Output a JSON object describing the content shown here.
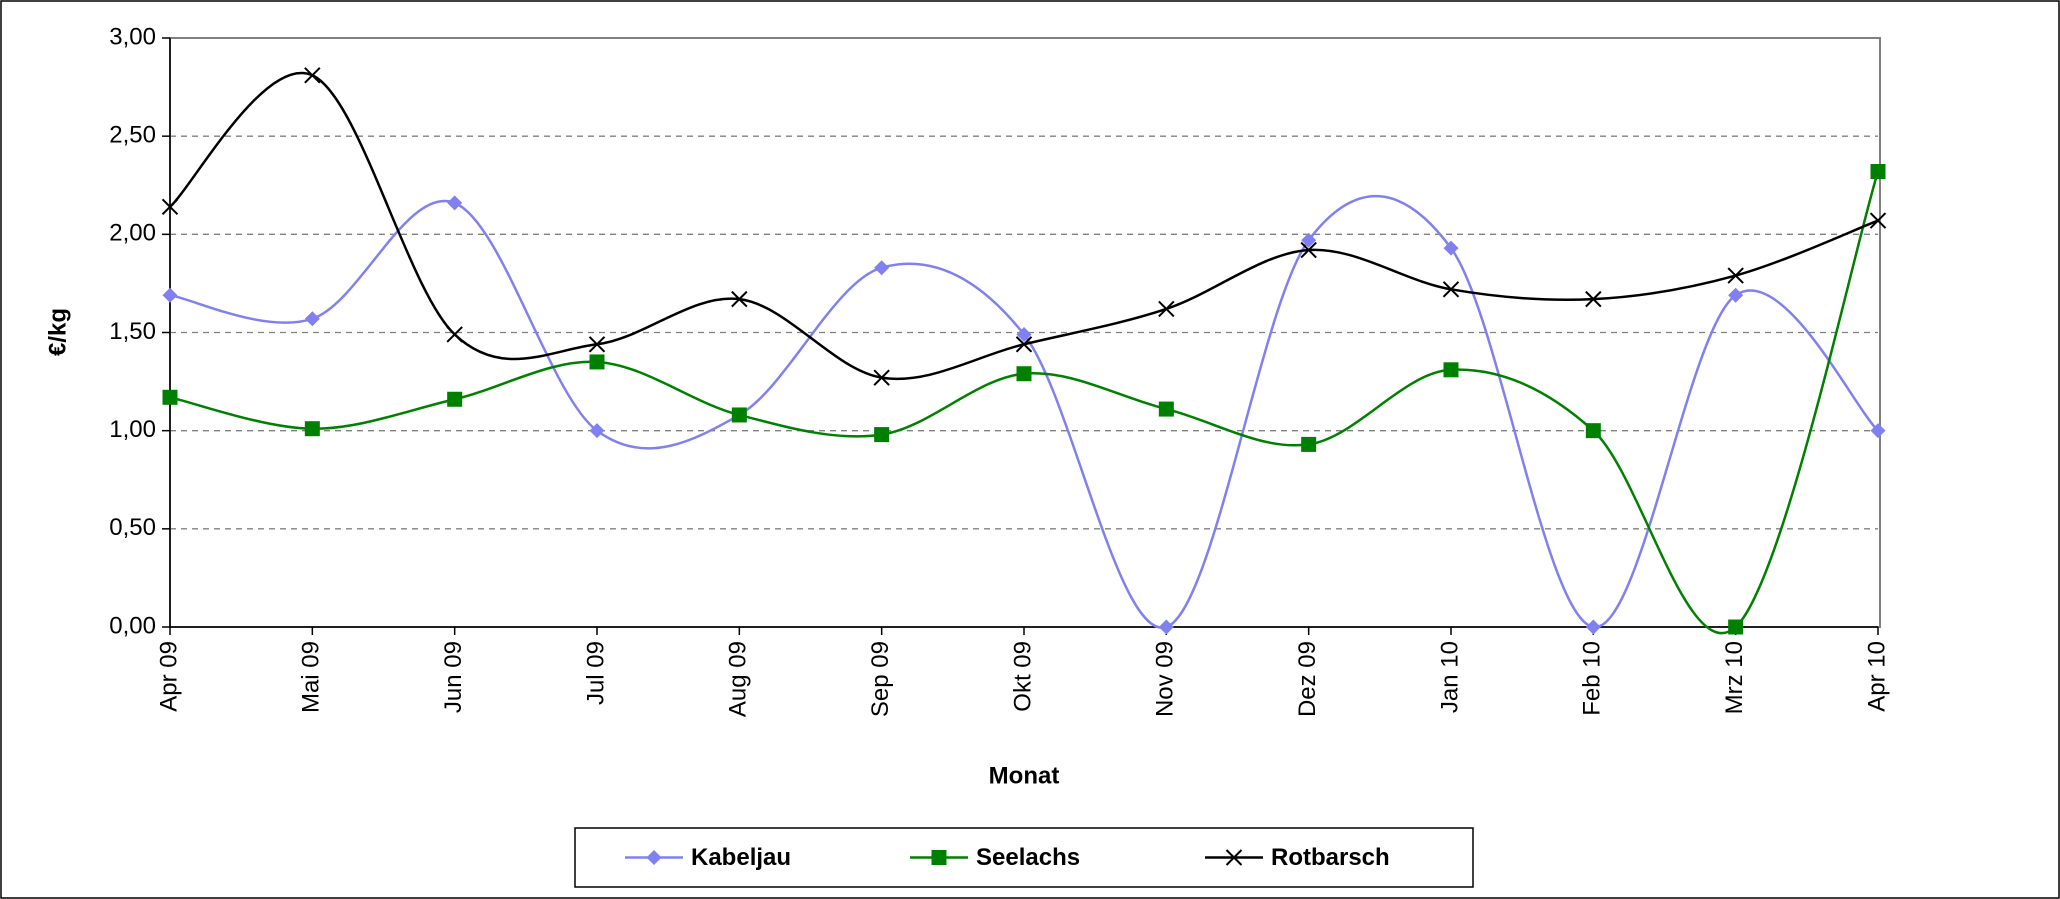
{
  "chart_data": {
    "type": "line",
    "x_label": "Monat",
    "y_label": "€/kg",
    "categories": [
      "Apr 09",
      "Mai 09",
      "Jun 09",
      "Jul 09",
      "Aug 09",
      "Sep 09",
      "Okt 09",
      "Nov 09",
      "Dez 09",
      "Jan 10",
      "Feb 10",
      "Mrz 10",
      "Apr 10"
    ],
    "series": [
      {
        "name": "Kabeljau",
        "color": "#8080f0",
        "marker": "diamond",
        "values": [
          1.69,
          1.57,
          2.16,
          1.0,
          1.08,
          1.83,
          1.49,
          0,
          1.97,
          1.93,
          0,
          1.69,
          1.0
        ]
      },
      {
        "name": "Seelachs",
        "color": "#008000",
        "marker": "square",
        "values": [
          1.17,
          1.01,
          1.16,
          1.35,
          1.08,
          0.98,
          1.29,
          1.11,
          0.93,
          1.31,
          1.0,
          0,
          2.32
        ]
      },
      {
        "name": "Rotbarsch",
        "color": "#000000",
        "marker": "x",
        "values": [
          2.14,
          2.81,
          1.49,
          1.44,
          1.67,
          1.27,
          1.44,
          1.62,
          1.92,
          1.72,
          1.67,
          1.79,
          2.07
        ]
      }
    ],
    "ylim": [
      0,
      3
    ],
    "yticks": [
      {
        "value": 0,
        "label": "0,00"
      },
      {
        "value": 0.5,
        "label": "0,50"
      },
      {
        "value": 1,
        "label": "1,00"
      },
      {
        "value": 1.5,
        "label": "1,50"
      },
      {
        "value": 2,
        "label": "2,00"
      },
      {
        "value": 2.5,
        "label": "2,50"
      },
      {
        "value": 3,
        "label": "3,00"
      }
    ],
    "grid": true,
    "smooth": true,
    "legend": "bottom"
  }
}
